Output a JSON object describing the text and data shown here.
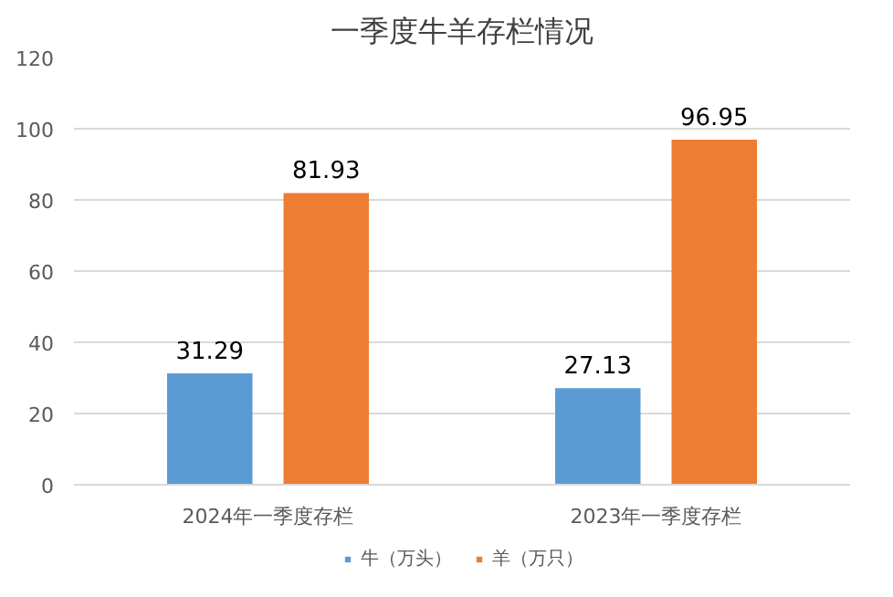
{
  "chart_data": {
    "type": "bar",
    "title": "一季度牛羊存栏情况",
    "categories": [
      "2024年一季度存栏",
      "2023年一季度存栏"
    ],
    "series": [
      {
        "name": "牛（万头）",
        "color": "#5b9bd5",
        "values": [
          31.29,
          27.13
        ]
      },
      {
        "name": "羊（万只）",
        "color": "#ed7d31",
        "values": [
          81.93,
          96.95
        ]
      }
    ],
    "ylim": [
      0,
      120
    ],
    "yticks": [
      0,
      20,
      40,
      60,
      80,
      100,
      120
    ],
    "grid": "y",
    "legend": "bottom",
    "data_labels": true
  }
}
